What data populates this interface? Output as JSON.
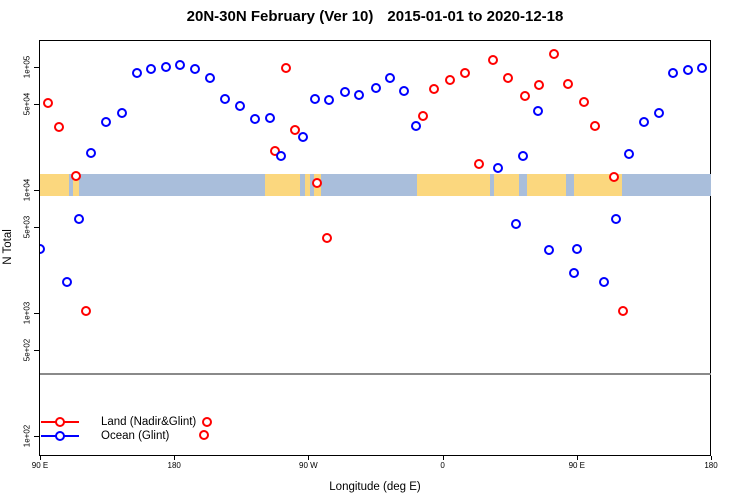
{
  "header": {
    "title_main": "20N-30N February (Ver 10)",
    "title_dates": "2015-01-01 to 2020-12-18"
  },
  "chart_data": {
    "type": "scatter",
    "title": "20N-30N February (Ver 10) 2015-01-01 to 2020-12-18",
    "xlabel": "Longitude (deg E)",
    "ylabel": "N Total",
    "grid": false,
    "x_axis": {
      "span_deg": 450,
      "note": "axis wraps eastward from 90E: 90E,180,90W,0,90E,180",
      "ticks": [
        {
          "deg": 0,
          "label": "90 E"
        },
        {
          "deg": 90,
          "label": "180"
        },
        {
          "deg": 180,
          "label": "90 W"
        },
        {
          "deg": 270,
          "label": "0"
        },
        {
          "deg": 360,
          "label": "90 E"
        },
        {
          "deg": 450,
          "label": "180"
        }
      ]
    },
    "y_axis": {
      "scale": "log10",
      "ylim": [
        70,
        165000
      ],
      "ticks": [
        {
          "value": 100,
          "label": "1e+02"
        },
        {
          "value": 500,
          "label": "5e+02"
        },
        {
          "value": 1000,
          "label": "1e+03"
        },
        {
          "value": 5000,
          "label": "5e+03"
        },
        {
          "value": 10000,
          "label": "1e+04"
        },
        {
          "value": 50000,
          "label": "5e+04"
        },
        {
          "value": 100000,
          "label": "1e+05"
        }
      ]
    },
    "reference_line": {
      "value": 320,
      "color": "#8a8a8a"
    },
    "map_band": {
      "value_range": [
        8900,
        13500
      ],
      "ocean_color": "#A9BEDB",
      "land_color": "#FBD77E",
      "land_segments_deg": [
        [
          0,
          19.5
        ],
        [
          22,
          26
        ],
        [
          150.8,
          174.5
        ],
        [
          177.5,
          181
        ],
        [
          183.5,
          188.5
        ],
        [
          252.5,
          301.5
        ],
        [
          304.5,
          321.5
        ],
        [
          326.5,
          352.5
        ],
        [
          358,
          390
        ]
      ]
    },
    "series": [
      {
        "name": "Land (Nadir&Glint)",
        "color": "#FF0000",
        "points": [
          [
            5.4,
            51000
          ],
          [
            12.7,
            32500
          ],
          [
            24.1,
            13000
          ],
          [
            30.8,
            1040
          ],
          [
            109.9,
            102
          ],
          [
            111.9,
            130
          ],
          [
            157.5,
            20800
          ],
          [
            164.9,
            98000
          ],
          [
            170.9,
            30800
          ],
          [
            185.6,
            11400
          ],
          [
            192.3,
            4070
          ],
          [
            256.7,
            40000
          ],
          [
            264,
            66200
          ],
          [
            274.8,
            78400
          ],
          [
            284.8,
            89400
          ],
          [
            294.2,
            16300
          ],
          [
            303.6,
            114000
          ],
          [
            313.6,
            81400
          ],
          [
            325,
            58100
          ],
          [
            334.4,
            71400
          ],
          [
            344.5,
            127600
          ],
          [
            353.9,
            72700
          ],
          [
            364.6,
            51900
          ],
          [
            372,
            33100
          ],
          [
            384.7,
            12800
          ],
          [
            390.7,
            1040
          ]
        ]
      },
      {
        "name": "Ocean (Glint)",
        "color": "#0000FF",
        "points": [
          [
            0.3,
            3310
          ],
          [
            18.1,
            1790
          ],
          [
            26.1,
            5810
          ],
          [
            34.2,
            20000
          ],
          [
            44.2,
            35700
          ],
          [
            55,
            42300
          ],
          [
            65,
            89400
          ],
          [
            74.4,
            96300
          ],
          [
            84.4,
            100000
          ],
          [
            93.8,
            103800
          ],
          [
            103.9,
            96300
          ],
          [
            113.9,
            81400
          ],
          [
            124,
            54900
          ],
          [
            134,
            48200
          ],
          [
            144.1,
            37800
          ],
          [
            154.2,
            38500
          ],
          [
            161.5,
            18900
          ],
          [
            176.3,
            27000
          ],
          [
            184.3,
            55000
          ],
          [
            193.7,
            53900
          ],
          [
            204.4,
            62600
          ],
          [
            213.8,
            59200
          ],
          [
            225.2,
            67500
          ],
          [
            234.6,
            81400
          ],
          [
            244,
            63800
          ],
          [
            252,
            33100
          ],
          [
            307,
            15100
          ],
          [
            319,
            5290
          ],
          [
            323.7,
            18900
          ],
          [
            333.8,
            43900
          ],
          [
            341.1,
            3250
          ],
          [
            357.9,
            2115
          ],
          [
            359.9,
            3310
          ],
          [
            378,
            1790
          ],
          [
            386,
            5810
          ],
          [
            394.7,
            19600
          ],
          [
            404.8,
            35700
          ],
          [
            414.9,
            42300
          ],
          [
            424.2,
            89400
          ],
          [
            434.3,
            94500
          ],
          [
            443.7,
            98100
          ]
        ]
      }
    ],
    "legend": {
      "position": "bottom-left",
      "entries": [
        "Land (Nadir&Glint)",
        "Ocean (Glint)"
      ]
    }
  }
}
